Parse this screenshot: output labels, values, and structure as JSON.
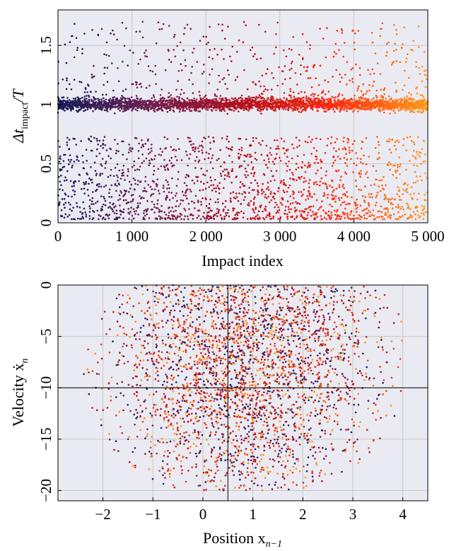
{
  "chart_data": [
    {
      "type": "scatter",
      "xlabel": "Impact index",
      "ylabel_main": "Δt",
      "ylabel_sub": "impact",
      "ylabel_tail": "/T",
      "xlim": [
        0,
        5000
      ],
      "ylim": [
        0,
        1.8
      ],
      "xticks": [
        {
          "value": 0,
          "label": "0"
        },
        {
          "value": 1000,
          "label": "1 000"
        },
        {
          "value": 2000,
          "label": "2 000"
        },
        {
          "value": 3000,
          "label": "3 000"
        },
        {
          "value": 4000,
          "label": "4 000"
        },
        {
          "value": 5000,
          "label": "5 000"
        }
      ],
      "yticks": [
        {
          "value": 0,
          "label": "0"
        },
        {
          "value": 0.5,
          "label": "0.5"
        },
        {
          "value": 1,
          "label": "1"
        },
        {
          "value": 1.5,
          "label": "1.5"
        }
      ],
      "grid": true,
      "n_points": 5000,
      "point_color_scale": "impact index: #141a5a → #6e1e50 → #b4101e → #ff2a0a → #ff9a14",
      "clusters": [
        {
          "center": 1.0,
          "spread": 0.03,
          "note": "dense band near 1"
        },
        {
          "range": [
            0.03,
            0.75
          ],
          "note": "sparse lower band"
        },
        {
          "range": [
            1.05,
            1.7
          ],
          "note": "sparse upper band"
        }
      ]
    },
    {
      "type": "scatter",
      "xlabel_main": "Position x",
      "xlabel_sub": "n−1",
      "ylabel_main": "Velocity ẋ",
      "ylabel_sub": "n",
      "xlim": [
        -2.9,
        4.5
      ],
      "ylim": [
        -21,
        0
      ],
      "xticks": [
        {
          "value": -2,
          "label": "−2"
        },
        {
          "value": -1,
          "label": "−1"
        },
        {
          "value": 0,
          "label": "0"
        },
        {
          "value": 1,
          "label": "1"
        },
        {
          "value": 2,
          "label": "2"
        },
        {
          "value": 3,
          "label": "3"
        },
        {
          "value": 4,
          "label": "4"
        }
      ],
      "yticks": [
        {
          "value": 0,
          "label": "0"
        },
        {
          "value": -5,
          "label": "−5"
        },
        {
          "value": -10,
          "label": "−10"
        },
        {
          "value": -15,
          "label": "−15"
        },
        {
          "value": -20,
          "label": "−20"
        }
      ],
      "reference_lines": {
        "x": 0.5,
        "y": -10
      },
      "grid": true,
      "n_points": 3000,
      "point_colors": [
        "#1e1e6e",
        "#8c1438",
        "#c81e1e",
        "#f03c0a",
        "#ff8c14"
      ],
      "cloud": {
        "x_range": [
          -2.4,
          4.0
        ],
        "y_range": [
          -20,
          0
        ],
        "center": [
          0.8,
          -7.5
        ]
      }
    }
  ]
}
